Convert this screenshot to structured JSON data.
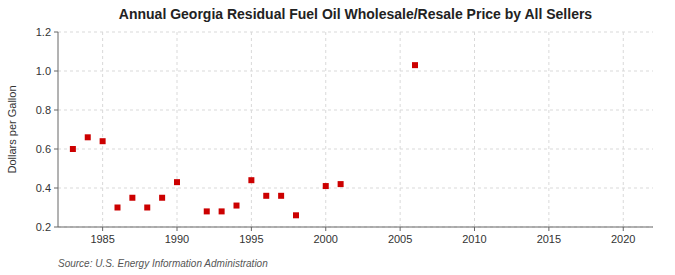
{
  "chart_data": {
    "type": "scatter",
    "title": "Annual Georgia Residual Fuel Oil Wholesale/Resale Price by All Sellers",
    "ylabel": "Dollars per Gallon",
    "source": "Source: U.S. Energy Information Administration",
    "x": [
      1983,
      1984,
      1985,
      1986,
      1987,
      1988,
      1989,
      1990,
      1992,
      1993,
      1994,
      1995,
      1996,
      1997,
      1998,
      2000,
      2001,
      2006
    ],
    "values": [
      0.6,
      0.66,
      0.64,
      0.3,
      0.35,
      0.3,
      0.35,
      0.43,
      0.28,
      0.28,
      0.31,
      0.44,
      0.36,
      0.36,
      0.26,
      0.41,
      0.42,
      1.03
    ],
    "color": "#cc0000",
    "marker": "square",
    "xlim": [
      1982,
      2022
    ],
    "ylim": [
      0.2,
      1.2
    ],
    "xticks": [
      1985,
      1990,
      1995,
      2000,
      2005,
      2010,
      2015,
      2020
    ],
    "yticks": [
      0.2,
      0.4,
      0.6,
      0.8,
      {
        "value": 1.0,
        "label": "1.0"
      },
      1.2
    ],
    "grid": true
  }
}
